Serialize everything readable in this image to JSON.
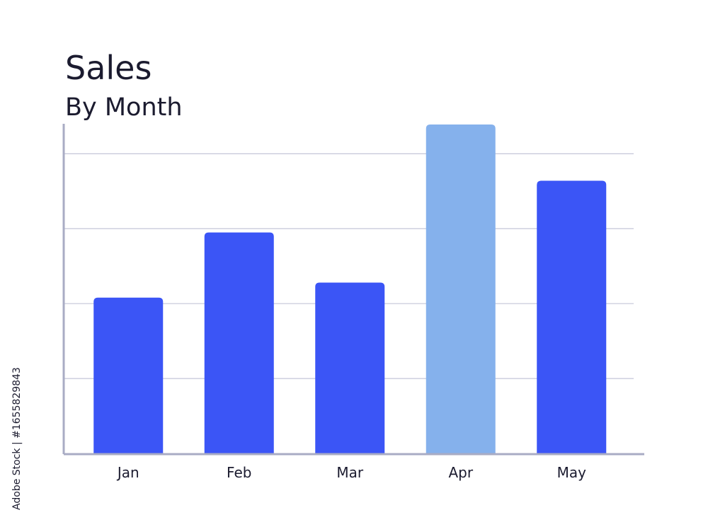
{
  "chart_data": {
    "type": "bar",
    "title": "Sales",
    "subtitle": "By Month",
    "categories": [
      "Jan",
      "Feb",
      "Mar",
      "Apr",
      "May"
    ],
    "values": [
      2.08,
      2.95,
      2.28,
      4.39,
      3.64
    ],
    "colors": [
      "#3b55f6",
      "#3b55f6",
      "#3b55f6",
      "#85b1ec",
      "#3b55f6"
    ],
    "ylim": [
      0,
      4.4
    ],
    "yticks": [
      1,
      2,
      3,
      4
    ],
    "grid": true,
    "tick_labels": false,
    "watermark": "Adobe Stock | #1655829843"
  }
}
